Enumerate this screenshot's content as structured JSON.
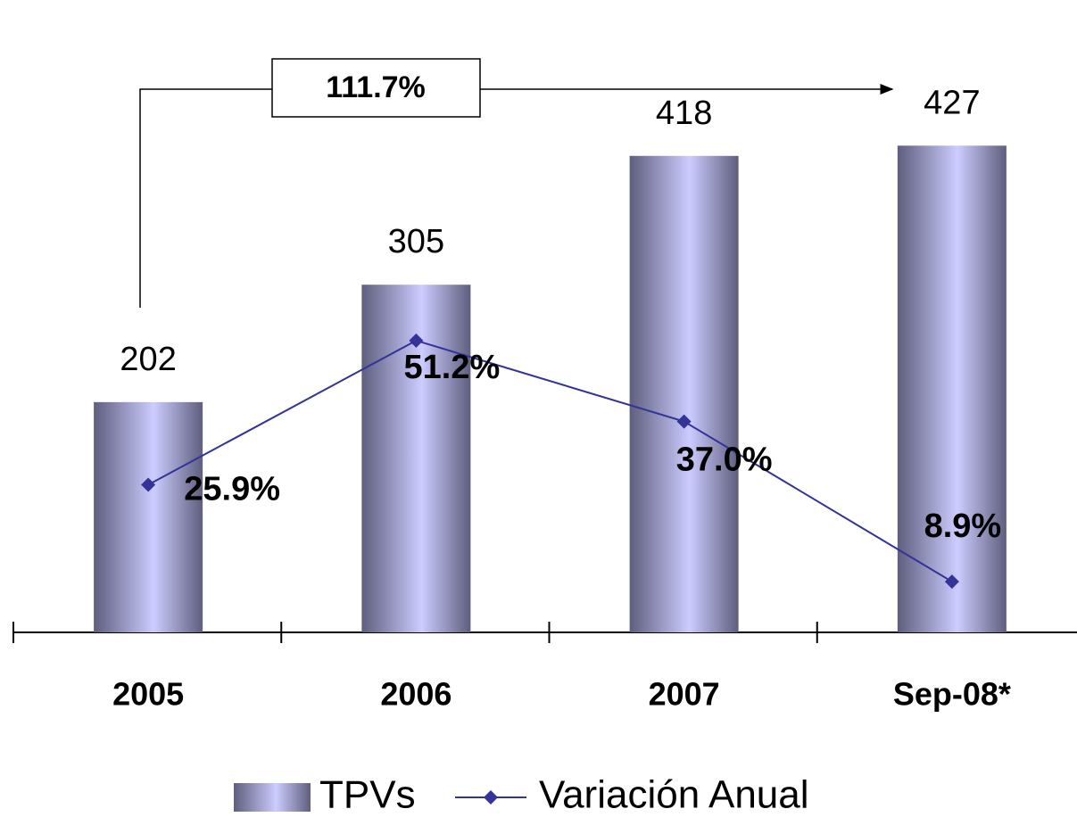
{
  "chart_data": {
    "type": "bar_line",
    "categories": [
      "2005",
      "2006",
      "2007",
      "Sep-08*"
    ],
    "series": [
      {
        "name": "TPVs",
        "type": "bar",
        "color": "#ccccff",
        "values": [
          202,
          305,
          418,
          427
        ]
      },
      {
        "name": "Variación Anual",
        "type": "line",
        "axis": "y2",
        "color": "#333399",
        "values": [
          25.9,
          51.2,
          37.0,
          8.9
        ],
        "value_labels": [
          "25.9%",
          "51.2%",
          "37.0%",
          "8.9%"
        ]
      }
    ],
    "ylim": [
      0,
      500
    ],
    "y2lim": [
      0,
      100
    ],
    "annotation": "111.7%",
    "legend": "bottom"
  }
}
